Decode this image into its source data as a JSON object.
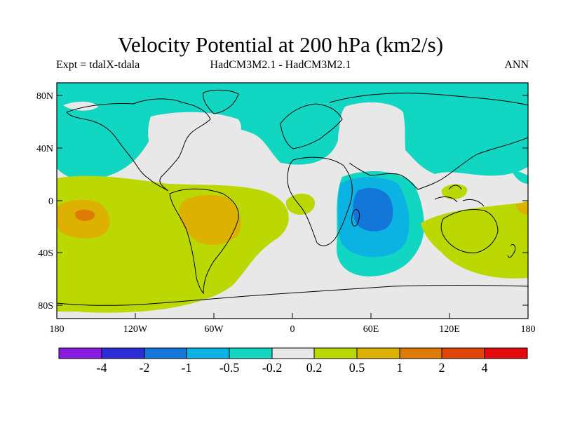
{
  "title": "Velocity Potential at 200 hPa (km2/s)",
  "subtitle_left": "Expt = tdalX-tdala",
  "subtitle_center": "HadCM3M2.1 - HadCM3M2.1",
  "subtitle_right": "ANN",
  "lat_labels": [
    "80N",
    "40N",
    "0",
    "40S",
    "80S"
  ],
  "lon_labels": [
    "180",
    "120W",
    "60W",
    "0",
    "60E",
    "120E",
    "180"
  ],
  "colorbar": {
    "labels": [
      "-4",
      "-2",
      "-1",
      "-0.5",
      "-0.2",
      "0.2",
      "0.5",
      "1",
      "2",
      "4"
    ],
    "colors": [
      "#8a1be0",
      "#2c2ed8",
      "#1377d9",
      "#0bb3e2",
      "#11d6c2",
      "#e8e8e8",
      "#bcd802",
      "#dcb100",
      "#de7b05",
      "#e04606",
      "#e30b0b"
    ]
  },
  "map_colors": {
    "ocean_neutral": "#e8e8e8",
    "neg_0_2": "#11d6c2",
    "neg_0_5": "#0bb3e2",
    "neg_1": "#1377d9",
    "pos_0_2": "#bcd802",
    "pos_0_5": "#dcb100",
    "pos_1": "#de7b05"
  }
}
